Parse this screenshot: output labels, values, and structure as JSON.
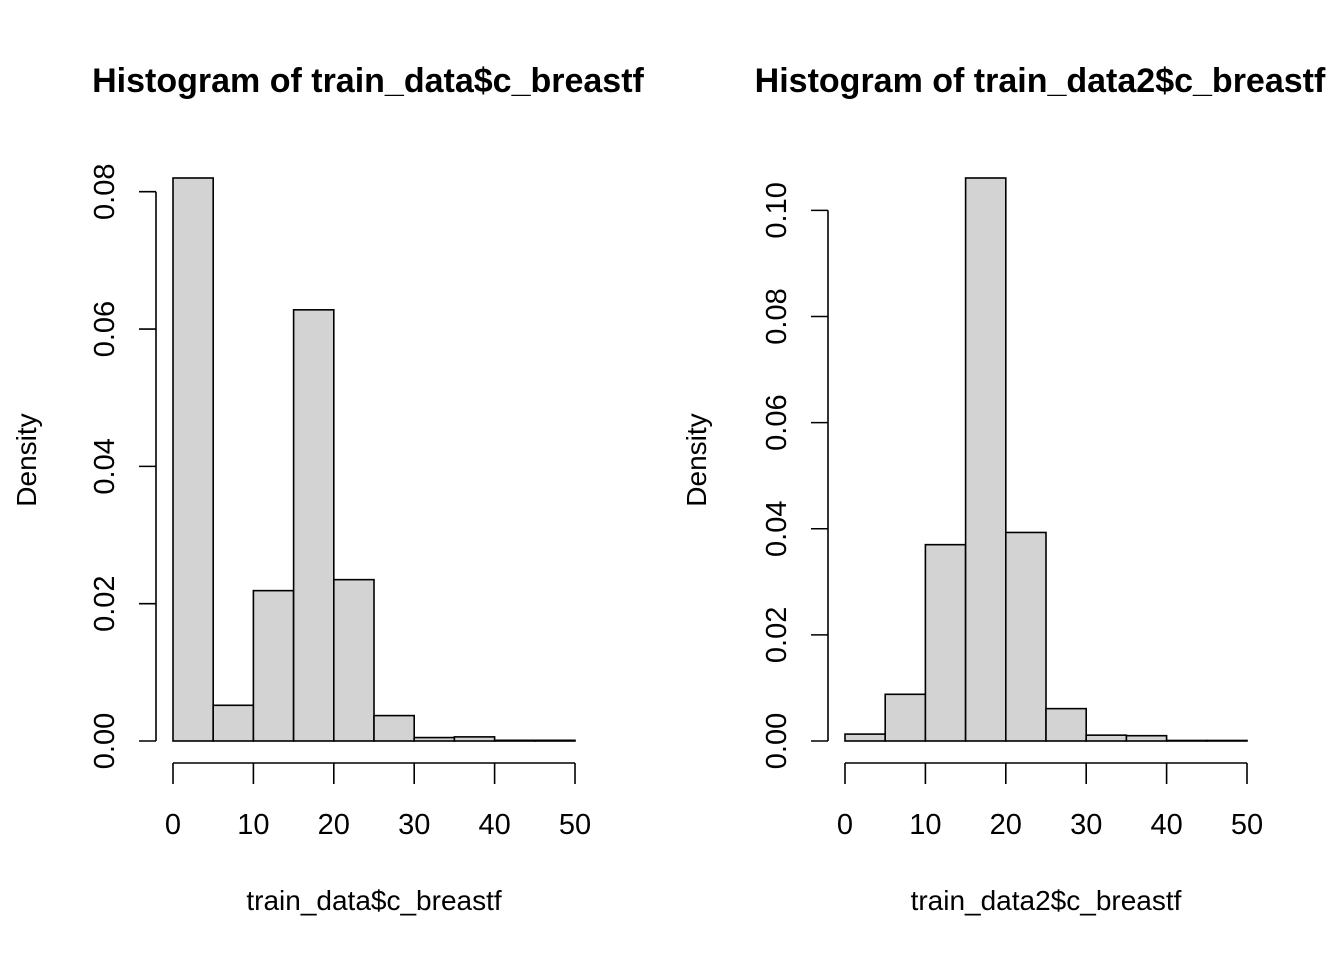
{
  "chart_data": [
    {
      "type": "bar",
      "title": "Histogram of train_data$c_breastf",
      "xlabel": "train_data$c_breastf",
      "ylabel": "Density",
      "bins": [
        [
          0,
          5
        ],
        [
          5,
          10
        ],
        [
          10,
          15
        ],
        [
          15,
          20
        ],
        [
          20,
          25
        ],
        [
          25,
          30
        ],
        [
          30,
          35
        ],
        [
          35,
          40
        ],
        [
          40,
          45
        ],
        [
          45,
          50
        ]
      ],
      "values": [
        0.082,
        0.0052,
        0.0219,
        0.0628,
        0.0235,
        0.0037,
        0.0005,
        0.0006,
        0.0001,
        0.0001
      ],
      "xlim": [
        0,
        50
      ],
      "ylim": [
        0,
        0.082
      ],
      "x_ticks": [
        0,
        10,
        20,
        30,
        40,
        50
      ],
      "y_ticks": [
        0,
        0.02,
        0.04,
        0.06,
        0.08
      ],
      "x_tick_labels": [
        "0",
        "10",
        "20",
        "30",
        "40",
        "50"
      ],
      "y_tick_labels": [
        "0.00",
        "0.02",
        "0.04",
        "0.06",
        "0.08"
      ],
      "grid": false,
      "bar_color": "#d3d3d3",
      "edge_color": "#000000"
    },
    {
      "type": "bar",
      "title": "Histogram of train_data2$c_breastf",
      "xlabel": "train_data2$c_breastf",
      "ylabel": "Density",
      "bins": [
        [
          0,
          5
        ],
        [
          5,
          10
        ],
        [
          10,
          15
        ],
        [
          15,
          20
        ],
        [
          20,
          25
        ],
        [
          25,
          30
        ],
        [
          30,
          35
        ],
        [
          35,
          40
        ],
        [
          40,
          45
        ],
        [
          45,
          50
        ]
      ],
      "values": [
        0.0013,
        0.0088,
        0.037,
        0.1061,
        0.0393,
        0.0061,
        0.0011,
        0.001,
        0.0001,
        0.0001
      ],
      "xlim": [
        0,
        50
      ],
      "ylim": [
        0,
        0.1061
      ],
      "x_ticks": [
        0,
        10,
        20,
        30,
        40,
        50
      ],
      "y_ticks": [
        0,
        0.02,
        0.04,
        0.06,
        0.08,
        0.1
      ],
      "x_tick_labels": [
        "0",
        "10",
        "20",
        "30",
        "40",
        "50"
      ],
      "y_tick_labels": [
        "0.00",
        "0.02",
        "0.04",
        "0.06",
        "0.08",
        "0.10"
      ],
      "grid": false,
      "bar_color": "#d3d3d3",
      "edge_color": "#000000"
    }
  ]
}
